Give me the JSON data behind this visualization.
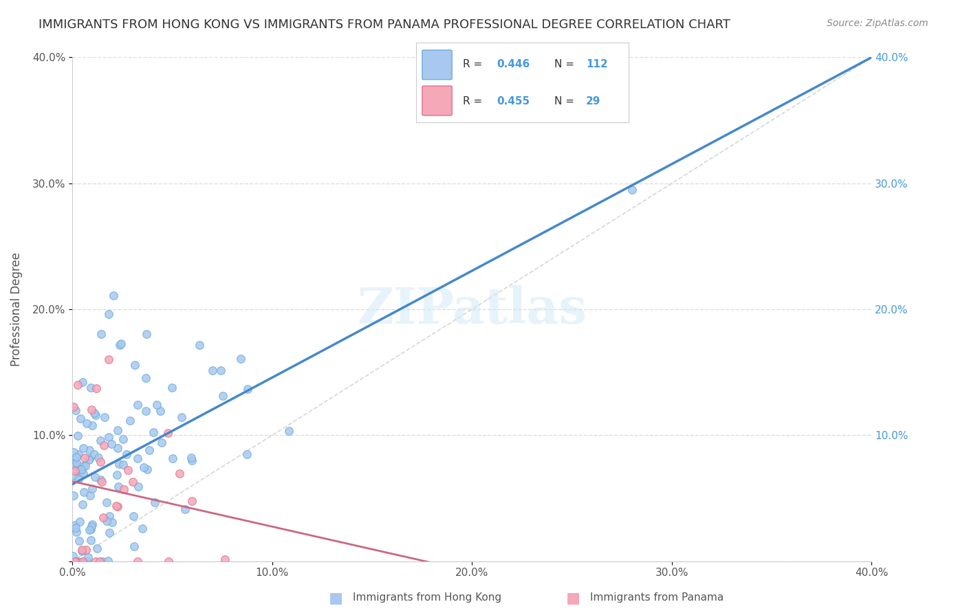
{
  "title": "IMMIGRANTS FROM HONG KONG VS IMMIGRANTS FROM PANAMA PROFESSIONAL DEGREE CORRELATION CHART",
  "source": "Source: ZipAtlas.com",
  "ylabel": "Professional Degree",
  "xlim": [
    0.0,
    0.4
  ],
  "ylim": [
    0.0,
    0.4
  ],
  "xtick_labels": [
    "0.0%",
    "10.0%",
    "20.0%",
    "30.0%",
    "40.0%"
  ],
  "xtick_vals": [
    0.0,
    0.1,
    0.2,
    0.3,
    0.4
  ],
  "ytick_vals": [
    0.0,
    0.1,
    0.2,
    0.3,
    0.4
  ],
  "watermark": "ZIPatlas",
  "hk_color": "#a8c8f0",
  "hk_edge_color": "#6aaed6",
  "pa_color": "#f4a8b8",
  "pa_edge_color": "#e07090",
  "hk_R": 0.446,
  "hk_N": 112,
  "pa_R": 0.455,
  "pa_N": 29,
  "hk_line_color": "#4488cc",
  "pa_line_color": "#cc6680",
  "diagonal_color": "#cccccc",
  "grid_color": "#dddddd",
  "title_color": "#333333",
  "right_axis_label_color": "#4499dd",
  "hk_seed": 42,
  "pa_seed": 7,
  "bottom_legend_hk": "Immigrants from Hong Kong",
  "bottom_legend_pa": "Immigrants from Panama",
  "legend_hk_R": "0.446",
  "legend_hk_N": "112",
  "legend_pa_R": "0.455",
  "legend_pa_N": "29"
}
